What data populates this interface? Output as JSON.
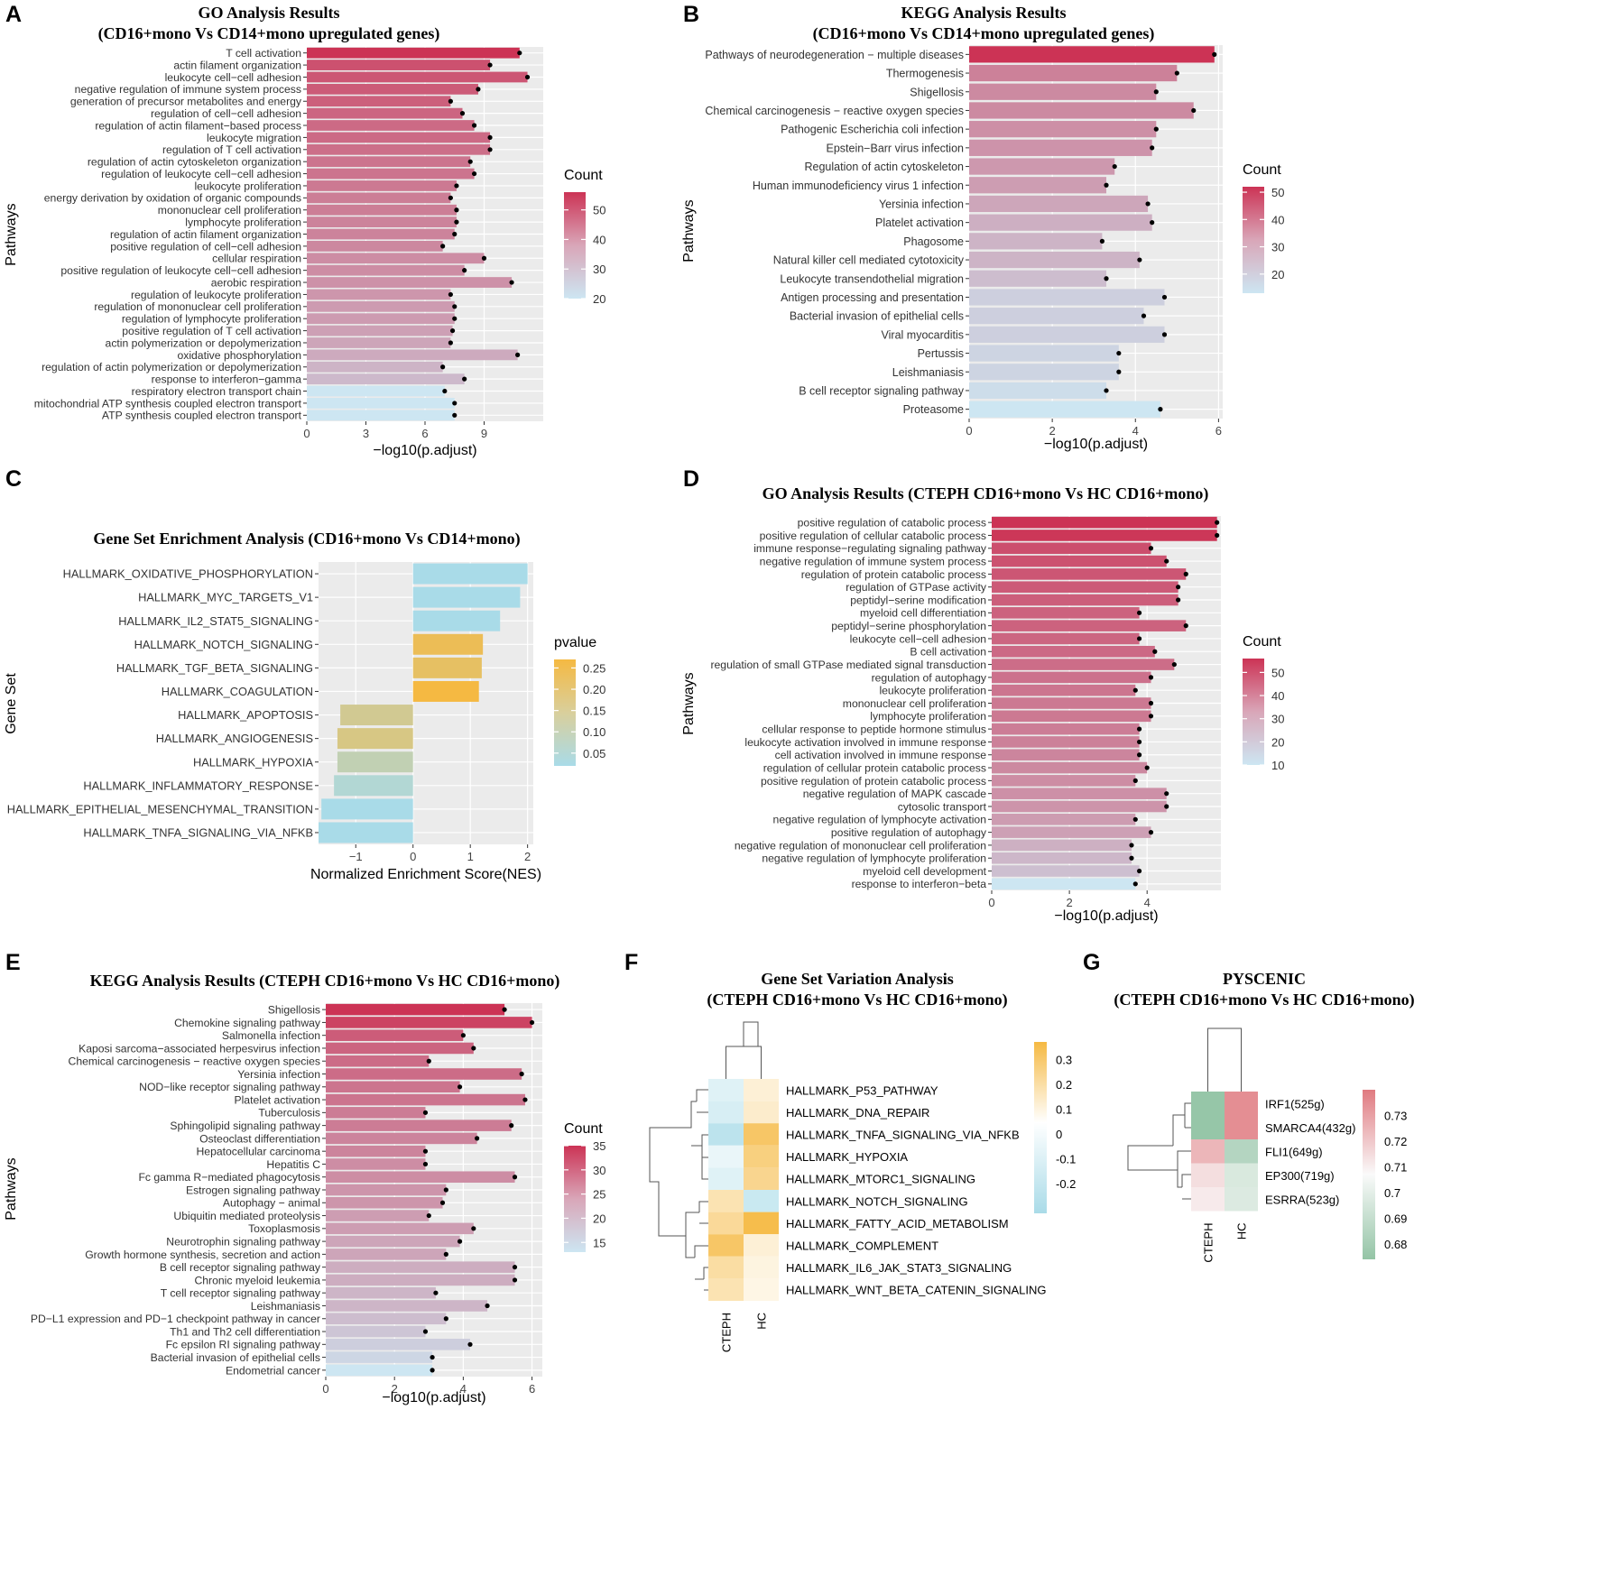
{
  "figure": {
    "colors": {
      "high": "#cc3355",
      "low": "#cde6f2",
      "panel_bg": "#ebebeb",
      "grid": "#ffffff",
      "gsea_high": "#f5b942",
      "gsea_low": "#a9dbe8",
      "heat_neg": "#a9dbe8",
      "heat_pos": "#f5b942",
      "pys_high": "#e07a80",
      "pys_low": "#93c4a5"
    }
  },
  "chart_data": [
    {
      "id": "A",
      "letter": "A",
      "type": "bar",
      "title": "GO Analysis Results",
      "subtitle": "(CD16+mono Vs CD14+mono upregulated genes)",
      "xlabel": "−log10(p.adjust)",
      "ylabel": "Pathways",
      "xlim": [
        0,
        12
      ],
      "xticks": [
        0,
        3,
        6,
        9
      ],
      "xtick_labels": [
        "0",
        "3",
        "6",
        "9"
      ],
      "count_range": [
        20,
        56
      ],
      "legend_title": "Count",
      "legend_ticks": [
        50,
        40,
        30,
        20
      ],
      "categories": [
        "T cell activation",
        "actin filament organization",
        "leukocyte cell−cell adhesion",
        "negative regulation of immune system process",
        "generation of precursor metabolites and energy",
        "regulation of cell−cell adhesion",
        "regulation of actin filament−based process",
        "leukocyte migration",
        "regulation of T cell activation",
        "regulation of actin cytoskeleton organization",
        "regulation of leukocyte cell−cell adhesion",
        "leukocyte proliferation",
        "energy derivation by oxidation of organic compounds",
        "mononuclear cell proliferation",
        "lymphocyte proliferation",
        "regulation of actin filament organization",
        "positive regulation of cell−cell adhesion",
        "cellular respiration",
        "positive regulation of leukocyte cell−cell adhesion",
        "aerobic respiration",
        "regulation of leukocyte proliferation",
        "regulation of mononuclear cell proliferation",
        "regulation of lymphocyte proliferation",
        "positive regulation of T cell activation",
        "actin polymerization or depolymerization",
        "oxidative phosphorylation",
        "regulation of actin polymerization or depolymerization",
        "response to interferon−gamma",
        "respiratory electron transport chain",
        "mitochondrial ATP synthesis coupled electron transport",
        "ATP synthesis coupled electron transport"
      ],
      "values": [
        10.8,
        9.3,
        11.2,
        8.7,
        7.3,
        7.9,
        8.5,
        9.3,
        9.3,
        8.3,
        8.5,
        7.6,
        7.3,
        7.6,
        7.6,
        7.5,
        6.9,
        9.0,
        8.0,
        10.4,
        7.3,
        7.5,
        7.5,
        7.4,
        7.3,
        10.7,
        6.9,
        8.0,
        7.0,
        7.5,
        7.5
      ],
      "counts": [
        56,
        50,
        49,
        48,
        47,
        46,
        45,
        45,
        44,
        43,
        43,
        42,
        41,
        41,
        40,
        40,
        39,
        38,
        38,
        37,
        36,
        35,
        35,
        34,
        33,
        32,
        30,
        29,
        20,
        20,
        20
      ]
    },
    {
      "id": "B",
      "letter": "B",
      "type": "bar",
      "title": "KEGG Analysis Results",
      "subtitle": "(CD16+mono Vs CD14+mono upregulated genes)",
      "xlabel": "−log10(p.adjust)",
      "ylabel": "Pathways",
      "xlim": [
        0,
        6.1
      ],
      "xticks": [
        0,
        2,
        4,
        6
      ],
      "xtick_labels": [
        "0",
        "2",
        "4",
        "6"
      ],
      "count_range": [
        13,
        52
      ],
      "legend_title": "Count",
      "legend_ticks": [
        50,
        40,
        30,
        20
      ],
      "categories": [
        "Pathways of neurodegeneration − multiple diseases",
        "Thermogenesis",
        "Shigellosis",
        "Chemical carcinogenesis − reactive oxygen species",
        "Pathogenic Escherichia coli infection",
        "Epstein−Barr virus infection",
        "Regulation of actin cytoskeleton",
        "Human immunodeficiency virus 1 infection",
        "Yersinia infection",
        "Platelet activation",
        "Phagosome",
        "Natural killer cell mediated cytotoxicity",
        "Leukocyte transendothelial migration",
        "Antigen processing and presentation",
        "Bacterial invasion of epithelial cells",
        "Viral myocarditis",
        "Pertussis",
        "Leishmaniasis",
        "B cell receptor signaling pathway",
        "Proteasome"
      ],
      "values": [
        5.9,
        5.0,
        4.5,
        5.4,
        4.5,
        4.4,
        3.5,
        3.3,
        4.3,
        4.4,
        3.2,
        4.1,
        3.3,
        4.7,
        4.2,
        4.7,
        3.6,
        3.6,
        3.3,
        4.6
      ],
      "counts": [
        52,
        35,
        33,
        33,
        32,
        31,
        30,
        29,
        27,
        25,
        24,
        24,
        22,
        18,
        18,
        18,
        17,
        17,
        15,
        13
      ]
    },
    {
      "id": "C",
      "letter": "C",
      "type": "bar",
      "title": "Gene Set Enrichment Analysis (CD16+mono Vs CD14+mono)",
      "xlabel": "Normalized Enrichment Score(NES)",
      "ylabel": "Gene Set",
      "xlim": [
        -1.65,
        2.1
      ],
      "xticks": [
        -1,
        0,
        1,
        2
      ],
      "xtick_labels": [
        "−1",
        "0",
        "1",
        "2"
      ],
      "legend_title": "pvalue",
      "pvalue_range": [
        0.02,
        0.27
      ],
      "legend_ticks": [
        0.25,
        0.2,
        0.15,
        0.1,
        0.05
      ],
      "legend_tick_labels": [
        "0.25",
        "0.20",
        "0.15",
        "0.10",
        "0.05"
      ],
      "categories": [
        "HALLMARK_OXIDATIVE_PHOSPHORYLATION",
        "HALLMARK_MYC_TARGETS_V1",
        "HALLMARK_IL2_STAT5_SIGNALING",
        "HALLMARK_NOTCH_SIGNALING",
        "HALLMARK_TGF_BETA_SIGNALING",
        "HALLMARK_COAGULATION",
        "HALLMARK_APOPTOSIS",
        "HALLMARK_ANGIOGENESIS",
        "HALLMARK_HYPOXIA",
        "HALLMARK_INFLAMMATORY_RESPONSE",
        "HALLMARK_EPITHELIAL_MESENCHYMAL_TRANSITION",
        "HALLMARK_TNFA_SIGNALING_VIA_NFKB"
      ],
      "values": [
        2.0,
        1.87,
        1.52,
        1.22,
        1.2,
        1.15,
        -1.27,
        -1.32,
        -1.32,
        -1.38,
        -1.6,
        -1.65
      ],
      "pvalues": [
        0.02,
        0.02,
        0.02,
        0.24,
        0.22,
        0.27,
        0.15,
        0.17,
        0.1,
        0.05,
        0.02,
        0.02
      ]
    },
    {
      "id": "D",
      "letter": "D",
      "type": "bar",
      "title": "GO Analysis Results (CTEPH CD16+mono Vs HC CD16+mono)",
      "xlabel": "−log10(p.adjust)",
      "ylabel": "Pathways",
      "xlim": [
        0,
        5.9
      ],
      "xticks": [
        0,
        2,
        4
      ],
      "xtick_labels": [
        "0",
        "2",
        "4"
      ],
      "count_range": [
        10,
        56
      ],
      "legend_title": "Count",
      "legend_ticks": [
        50,
        40,
        30,
        20,
        10
      ],
      "categories": [
        "positive regulation of catabolic process",
        "positive regulation of cellular catabolic process",
        "immune response−regulating signaling pathway",
        "negative regulation of immune system process",
        "regulation of protein catabolic process",
        "regulation of GTPase activity",
        "peptidyl−serine modification",
        "myeloid cell differentiation",
        "peptidyl−serine phosphorylation",
        "leukocyte cell−cell adhesion",
        "B cell activation",
        "regulation of small GTPase mediated signal transduction",
        "regulation of autophagy",
        "leukocyte proliferation",
        "mononuclear cell proliferation",
        "lymphocyte proliferation",
        "cellular response to peptide hormone stimulus",
        "leukocyte activation involved in immune response",
        "cell activation involved in immune response",
        "regulation of cellular protein catabolic process",
        "positive regulation of protein catabolic process",
        "negative regulation of MAPK cascade",
        "cytosolic transport",
        "negative regulation of lymphocyte activation",
        "positive regulation of autophagy",
        "negative regulation of mononuclear cell proliferation",
        "negative regulation of lymphocyte proliferation",
        "myeloid cell development",
        "response to interferon−beta"
      ],
      "values": [
        5.8,
        5.8,
        4.1,
        4.5,
        5.0,
        4.8,
        4.8,
        3.8,
        5.0,
        3.8,
        4.2,
        4.7,
        4.1,
        3.7,
        4.1,
        4.1,
        3.8,
        3.8,
        3.8,
        4.0,
        3.7,
        4.5,
        4.5,
        3.7,
        4.1,
        3.6,
        3.6,
        3.8,
        3.7
      ],
      "counts": [
        56,
        55,
        49,
        48,
        47,
        46,
        45,
        44,
        44,
        43,
        42,
        41,
        40,
        39,
        38,
        38,
        37,
        36,
        35,
        34,
        33,
        32,
        31,
        29,
        28,
        24,
        22,
        20,
        10
      ]
    },
    {
      "id": "E",
      "letter": "E",
      "type": "bar",
      "title": "KEGG Analysis Results (CTEPH CD16+mono Vs HC CD16+mono)",
      "xlabel": "−log10(p.adjust)",
      "ylabel": "Pathways",
      "xlim": [
        0,
        6.3
      ],
      "xticks": [
        0,
        2,
        4,
        6
      ],
      "xtick_labels": [
        "0",
        "2",
        "4",
        "6"
      ],
      "count_range": [
        13,
        35
      ],
      "legend_title": "Count",
      "legend_ticks": [
        35,
        30,
        25,
        20,
        15
      ],
      "categories": [
        "Shigellosis",
        "Chemokine signaling pathway",
        "Salmonella infection",
        "Kaposi sarcoma−associated herpesvirus infection",
        "Chemical carcinogenesis − reactive oxygen species",
        "Yersinia infection",
        "NOD−like receptor signaling pathway",
        "Platelet activation",
        "Tuberculosis",
        "Sphingolipid signaling pathway",
        "Osteoclast differentiation",
        "Hepatocellular carcinoma",
        "Hepatitis C",
        "Fc gamma R−mediated phagocytosis",
        "Estrogen signaling pathway",
        "Autophagy − animal",
        "Ubiquitin mediated proteolysis",
        "Toxoplasmosis",
        "Neurotrophin signaling pathway",
        "Growth hormone synthesis, secretion and action",
        "B cell receptor signaling pathway",
        "Chronic myeloid leukemia",
        "T cell receptor signaling pathway",
        "Leishmaniasis",
        "PD−L1 expression and PD−1 checkpoint pathway in cancer",
        "Th1 and Th2 cell differentiation",
        "Fc epsilon RI signaling pathway",
        "Bacterial invasion of epithelial cells",
        "Endometrial cancer"
      ],
      "values": [
        5.2,
        6.0,
        4.0,
        4.3,
        3.0,
        5.7,
        3.9,
        5.8,
        2.9,
        5.4,
        4.4,
        2.9,
        2.9,
        5.5,
        3.5,
        3.4,
        3.0,
        4.3,
        3.9,
        3.5,
        5.5,
        5.5,
        3.2,
        4.7,
        3.5,
        2.9,
        4.2,
        3.1,
        3.1
      ],
      "counts": [
        35,
        33,
        30,
        29,
        28,
        28,
        27,
        27,
        26,
        26,
        25,
        25,
        24,
        24,
        23,
        23,
        22,
        22,
        21,
        21,
        20,
        20,
        19,
        19,
        18,
        17,
        16,
        15,
        13
      ]
    },
    {
      "id": "F",
      "letter": "F",
      "type": "heatmap",
      "title": "Gene Set Variation Analysis",
      "subtitle": "(CTEPH CD16+mono Vs HC CD16+mono)",
      "columns": [
        "CTEPH",
        "HC"
      ],
      "rows": [
        "HALLMARK_P53_PATHWAY",
        "HALLMARK_DNA_REPAIR",
        "HALLMARK_TNFA_SIGNALING_VIA_NFKB",
        "HALLMARK_HYPOXIA",
        "HALLMARK_MTORC1_SIGNALING",
        "HALLMARK_NOTCH_SIGNALING",
        "HALLMARK_FATTY_ACID_METABOLISM",
        "HALLMARK_COMPLEMENT",
        "HALLMARK_IL6_JAK_STAT3_SIGNALING",
        "HALLMARK_WNT_BETA_CATENIN_SIGNALING"
      ],
      "values": [
        [
          -0.12,
          0.08
        ],
        [
          -0.15,
          0.1
        ],
        [
          -0.25,
          0.3
        ],
        [
          -0.08,
          0.25
        ],
        [
          -0.12,
          0.22
        ],
        [
          0.15,
          -0.2
        ],
        [
          0.2,
          0.35
        ],
        [
          0.3,
          0.08
        ],
        [
          0.18,
          0.06
        ],
        [
          0.15,
          0.05
        ]
      ],
      "legend_ticks": [
        0.3,
        0.2,
        0.1,
        0,
        -0.1,
        -0.2
      ],
      "legend_tick_labels": [
        "0.3",
        "0.2",
        "0.1",
        "0",
        "-0.1",
        "-0.2"
      ],
      "value_range": [
        -0.32,
        0.37
      ]
    },
    {
      "id": "G",
      "letter": "G",
      "type": "heatmap",
      "title": "PYSCENIC",
      "subtitle": "(CTEPH CD16+mono Vs HC CD16+mono)",
      "columns": [
        "CTEPH",
        "HC"
      ],
      "rows": [
        "IRF1(525g)",
        "SMARCA4(432g)",
        "FLI1(649g)",
        "EP300(719g)",
        "ESRRA(523g)"
      ],
      "values": [
        [
          0.675,
          0.735
        ],
        [
          0.675,
          0.735
        ],
        [
          0.725,
          0.685
        ],
        [
          0.715,
          0.697
        ],
        [
          0.712,
          0.698
        ]
      ],
      "legend_ticks": [
        0.73,
        0.72,
        0.71,
        0.7,
        0.69,
        0.68
      ],
      "legend_tick_labels": [
        "0.73",
        "0.72",
        "0.71",
        "0.7",
        "0.69",
        "0.68"
      ],
      "value_range": [
        0.674,
        0.74
      ]
    }
  ]
}
